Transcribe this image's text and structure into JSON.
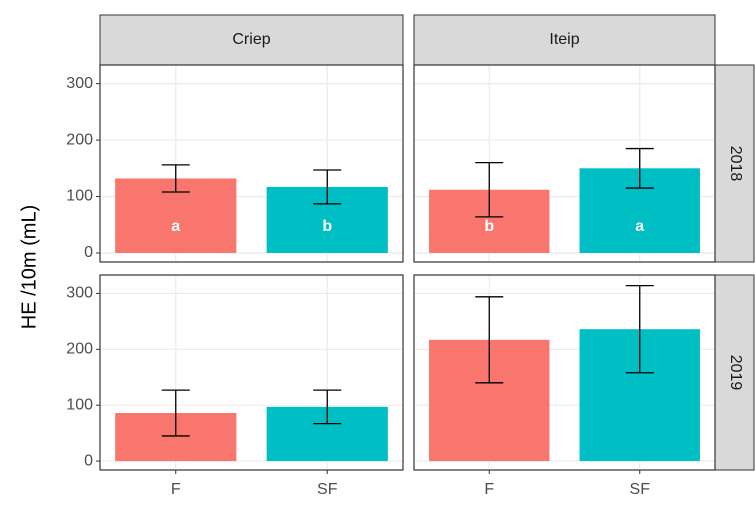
{
  "chart_data": {
    "type": "bar",
    "ylabel": "HE /10m (mL)",
    "facet_columns": [
      "Criep",
      "Iteip"
    ],
    "facet_rows": [
      "2018",
      "2019"
    ],
    "categories": [
      "F",
      "SF"
    ],
    "colors": [
      "#f8766d",
      "#00bfc4"
    ],
    "ylim": [
      -16,
      333
    ],
    "yticks": [
      0,
      100,
      200,
      300
    ],
    "grid": true,
    "panels": [
      [
        {
          "values": [
            132,
            117
          ],
          "errors": [
            24,
            30
          ],
          "letters": [
            "a",
            "b"
          ]
        },
        {
          "values": [
            112,
            150
          ],
          "errors": [
            48,
            35
          ],
          "letters": [
            "b",
            "a"
          ]
        }
      ],
      [
        {
          "values": [
            86,
            97
          ],
          "errors": [
            41,
            30
          ]
        },
        {
          "values": [
            217,
            236
          ],
          "errors": [
            77,
            78
          ]
        }
      ]
    ]
  }
}
